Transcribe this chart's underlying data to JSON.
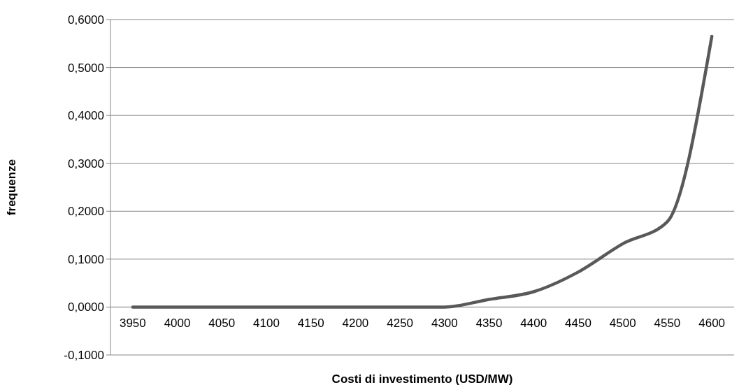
{
  "chart_data": {
    "type": "line",
    "xlabel": "Costi di investimento (USD/MW)",
    "ylabel": "frequenze",
    "categories": [
      "3950",
      "4000",
      "4050",
      "4100",
      "4150",
      "4200",
      "4250",
      "4300",
      "4350",
      "4400",
      "4450",
      "4500",
      "4550",
      "4600"
    ],
    "series": [
      {
        "color": "#595959",
        "values": [
          0,
          0,
          0,
          0,
          0,
          0,
          0,
          0,
          0.016,
          0.032,
          0.073,
          0.132,
          0.178,
          0.565
        ]
      }
    ],
    "ylim": [
      -0.1,
      0.6
    ],
    "yticks": [
      {
        "value": -0.1,
        "label": "-0,1000"
      },
      {
        "value": 0,
        "label": "0,0000"
      },
      {
        "value": 0.1,
        "label": "0,1000"
      },
      {
        "value": 0.2,
        "label": "0,2000"
      },
      {
        "value": 0.3,
        "label": "0,3000"
      },
      {
        "value": 0.4,
        "label": "0,4000"
      },
      {
        "value": 0.5,
        "label": "0,5000"
      },
      {
        "value": 0.6,
        "label": "0,6000"
      }
    ],
    "grid": "y",
    "marker": "none",
    "line_style": "solid"
  }
}
